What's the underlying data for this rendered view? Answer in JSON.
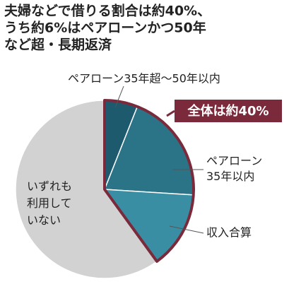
{
  "chart_data": {
    "type": "pie",
    "title": [
      "夫婦などで借りる割合は約40%、",
      "うち約6%はペアローンかつ50年",
      "など超・長期返済"
    ],
    "categories": [
      "ペアローン35年超～50年以内",
      "ペアローン\n35年以内",
      "収入合算",
      "いずれも\n利用して\nいない"
    ],
    "values": [
      6,
      20,
      14,
      60
    ],
    "colors": [
      "#1e5a6e",
      "#2b7488",
      "#3a8ea4",
      "#d2d2d2"
    ],
    "annotation": "全体は約40%",
    "highlight_color": "#7b2a3c"
  }
}
